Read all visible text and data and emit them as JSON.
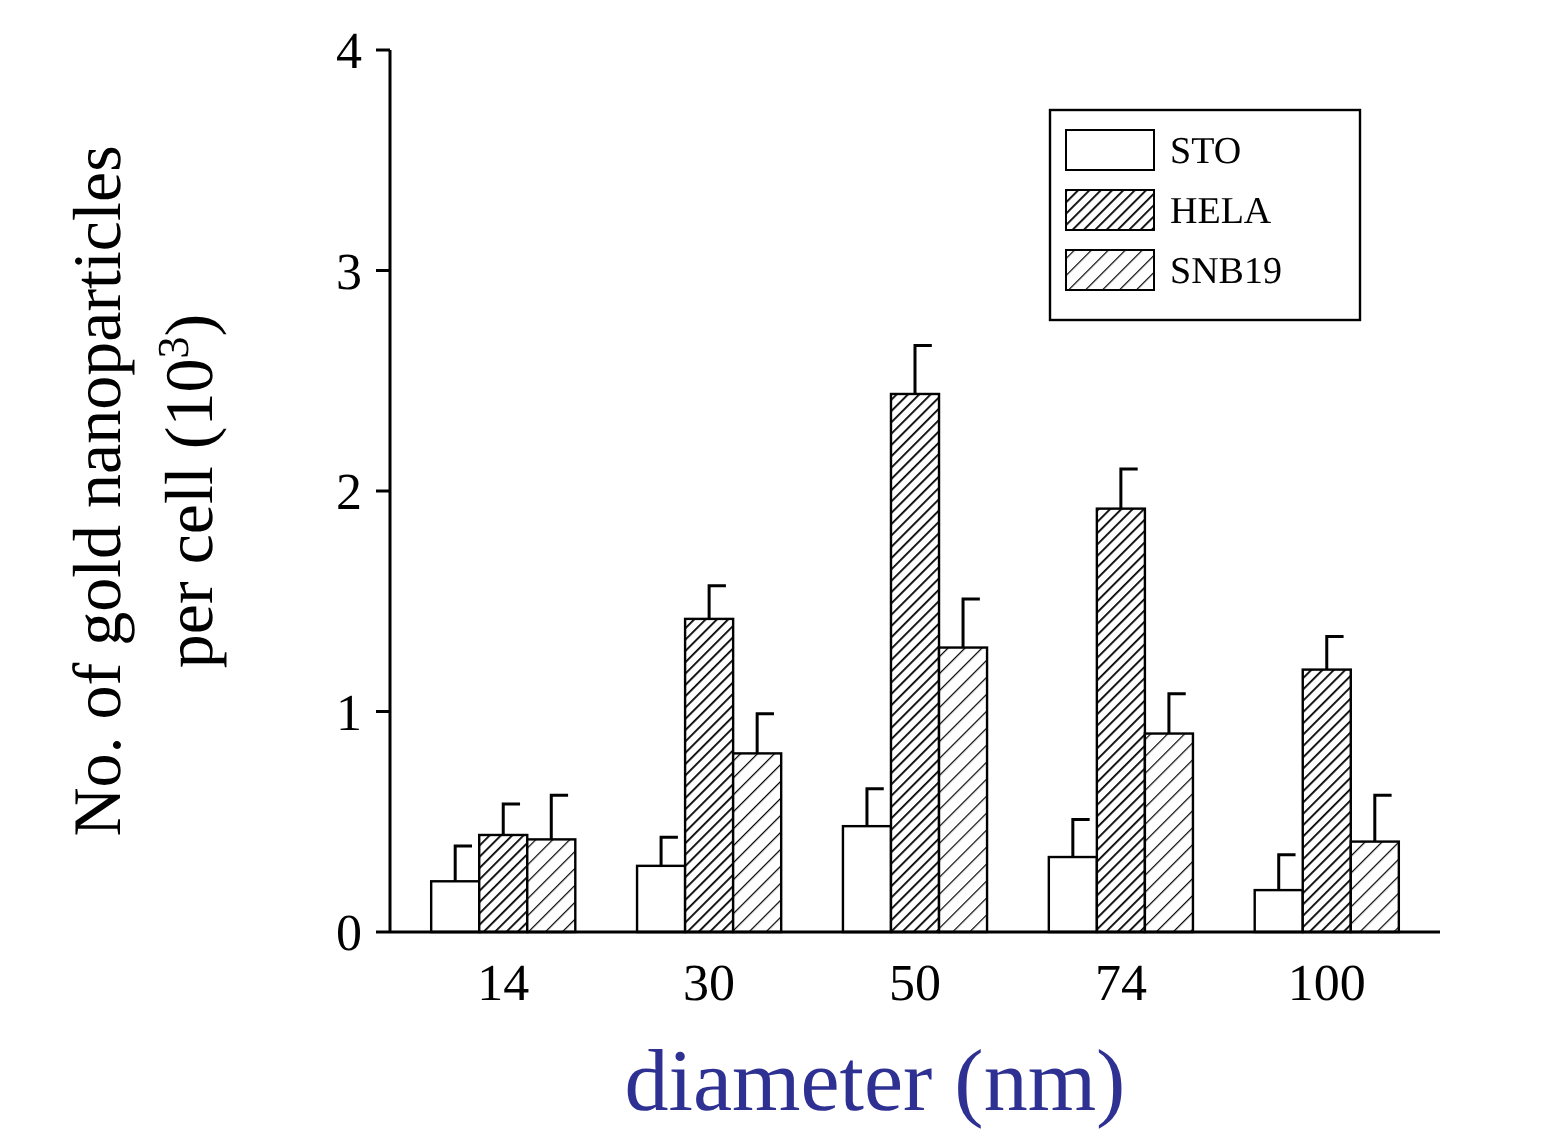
{
  "chart_data": {
    "type": "bar",
    "xlabel": "diameter (nm)",
    "ylabel": "No. of gold nanoparticles\nper cell (10$^{3}$)",
    "categories": [
      "14",
      "30",
      "50",
      "74",
      "100"
    ],
    "ylim": [
      0,
      4
    ],
    "yticks": [
      0,
      1,
      2,
      3,
      4
    ],
    "legend": "top right",
    "grid": false,
    "series": [
      {
        "name": "STO",
        "color": "#ffffff",
        "values": [
          0.23,
          0.3,
          0.48,
          0.34,
          0.19
        ],
        "errors": [
          0.16,
          0.13,
          0.17,
          0.17,
          0.16
        ]
      },
      {
        "name": "HELA",
        "color": "#000000",
        "values": [
          0.44,
          1.42,
          2.44,
          1.92,
          1.19
        ],
        "errors": [
          0.14,
          0.15,
          0.22,
          0.18,
          0.15
        ]
      },
      {
        "name": "SNB19",
        "color": "#000000",
        "values": [
          0.42,
          0.81,
          1.29,
          0.9,
          0.41
        ],
        "errors": [
          0.2,
          0.18,
          0.22,
          0.18,
          0.21
        ]
      }
    ]
  }
}
